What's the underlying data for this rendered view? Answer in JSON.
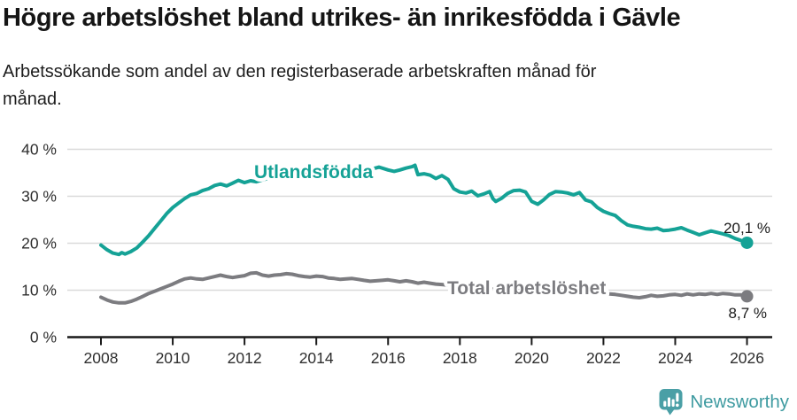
{
  "header": {
    "title": "Högre arbetslöshet bland utrikes- än inrikesfödda i Gävle",
    "subtitle_line1": "Arbetssökande som andel av den registerbaserade arbetskraften månad för",
    "subtitle_line2": "månad."
  },
  "branding": {
    "logo_text": "Newsworthy",
    "logo_icon": "bar-chart-speech-bubble-icon",
    "logo_color": "#3f9ba1"
  },
  "colors": {
    "foreign_born_line": "#15a296",
    "total_line": "#7c7c80",
    "gridline": "#dadada",
    "axis": "#1a1a1a",
    "tick_text": "#2e2e2e",
    "end_label_text": "#1a1a1a",
    "background": "#ffffff"
  },
  "chart_data": {
    "type": "line",
    "title": "Högre arbetslöshet bland utrikes- än inrikesfödda i Gävle",
    "subtitle": "Arbetssökande som andel av den registerbaserade arbetskraften månad för månad.",
    "xlabel": "",
    "ylabel": "",
    "grid": "horizontal",
    "xlim": [
      2007.05,
      2026.7
    ],
    "ylim": [
      0,
      42
    ],
    "x_ticks": [
      {
        "value": 2008,
        "label": "2008"
      },
      {
        "value": 2010,
        "label": "2010"
      },
      {
        "value": 2012,
        "label": "2012"
      },
      {
        "value": 2014,
        "label": "2014"
      },
      {
        "value": 2016,
        "label": "2016"
      },
      {
        "value": 2018,
        "label": "2018"
      },
      {
        "value": 2020,
        "label": "2020"
      },
      {
        "value": 2022,
        "label": "2022"
      },
      {
        "value": 2024,
        "label": "2024"
      },
      {
        "value": 2026,
        "label": "2026"
      }
    ],
    "y_ticks": [
      {
        "value": 0,
        "label": "0 %"
      },
      {
        "value": 10,
        "label": "10 %"
      },
      {
        "value": 20,
        "label": "20 %"
      },
      {
        "value": 30,
        "label": "30 %"
      },
      {
        "value": 40,
        "label": "40 %"
      }
    ],
    "series": [
      {
        "name": "Utlandsfödda",
        "color": "#15a296",
        "end_value": 20.1,
        "end_label": "20,1 %",
        "points": [
          [
            2008.0,
            19.6
          ],
          [
            2008.17,
            18.6
          ],
          [
            2008.33,
            17.9
          ],
          [
            2008.5,
            17.6
          ],
          [
            2008.58,
            18.0
          ],
          [
            2008.67,
            17.7
          ],
          [
            2008.83,
            18.2
          ],
          [
            2009.0,
            19.0
          ],
          [
            2009.17,
            20.3
          ],
          [
            2009.33,
            21.6
          ],
          [
            2009.5,
            23.2
          ],
          [
            2009.67,
            24.8
          ],
          [
            2009.83,
            26.3
          ],
          [
            2010.0,
            27.6
          ],
          [
            2010.17,
            28.6
          ],
          [
            2010.33,
            29.5
          ],
          [
            2010.5,
            30.3
          ],
          [
            2010.67,
            30.6
          ],
          [
            2010.83,
            31.2
          ],
          [
            2011.0,
            31.6
          ],
          [
            2011.17,
            32.3
          ],
          [
            2011.33,
            32.6
          ],
          [
            2011.5,
            32.2
          ],
          [
            2011.67,
            32.8
          ],
          [
            2011.83,
            33.4
          ],
          [
            2012.0,
            32.9
          ],
          [
            2012.17,
            33.3
          ],
          [
            2012.33,
            33.1
          ],
          [
            2012.5,
            33.5
          ],
          [
            2012.75,
            34.0
          ],
          [
            2013.0,
            34.3
          ],
          [
            2013.25,
            34.6
          ],
          [
            2013.5,
            34.4
          ],
          [
            2013.75,
            34.8
          ],
          [
            2014.0,
            35.0
          ],
          [
            2014.25,
            34.7
          ],
          [
            2014.5,
            35.0
          ],
          [
            2014.75,
            35.2
          ],
          [
            2015.0,
            35.4
          ],
          [
            2015.25,
            35.2
          ],
          [
            2015.5,
            35.7
          ],
          [
            2015.75,
            36.2
          ],
          [
            2016.0,
            35.6
          ],
          [
            2016.17,
            35.3
          ],
          [
            2016.33,
            35.6
          ],
          [
            2016.5,
            36.0
          ],
          [
            2016.67,
            36.3
          ],
          [
            2016.75,
            36.6
          ],
          [
            2016.83,
            34.6
          ],
          [
            2017.0,
            34.8
          ],
          [
            2017.17,
            34.5
          ],
          [
            2017.33,
            33.8
          ],
          [
            2017.5,
            34.4
          ],
          [
            2017.67,
            33.6
          ],
          [
            2017.83,
            31.6
          ],
          [
            2018.0,
            30.9
          ],
          [
            2018.17,
            30.7
          ],
          [
            2018.33,
            31.1
          ],
          [
            2018.5,
            30.1
          ],
          [
            2018.67,
            30.5
          ],
          [
            2018.83,
            31.0
          ],
          [
            2018.92,
            29.5
          ],
          [
            2019.0,
            28.9
          ],
          [
            2019.17,
            29.6
          ],
          [
            2019.33,
            30.6
          ],
          [
            2019.5,
            31.2
          ],
          [
            2019.67,
            31.3
          ],
          [
            2019.83,
            30.9
          ],
          [
            2020.0,
            28.9
          ],
          [
            2020.17,
            28.3
          ],
          [
            2020.33,
            29.2
          ],
          [
            2020.5,
            30.4
          ],
          [
            2020.67,
            31.0
          ],
          [
            2020.83,
            30.9
          ],
          [
            2021.0,
            30.7
          ],
          [
            2021.17,
            30.3
          ],
          [
            2021.33,
            30.8
          ],
          [
            2021.5,
            29.2
          ],
          [
            2021.67,
            28.8
          ],
          [
            2021.83,
            27.6
          ],
          [
            2022.0,
            26.8
          ],
          [
            2022.17,
            26.3
          ],
          [
            2022.33,
            25.9
          ],
          [
            2022.5,
            24.8
          ],
          [
            2022.67,
            23.9
          ],
          [
            2022.83,
            23.6
          ],
          [
            2023.0,
            23.4
          ],
          [
            2023.17,
            23.1
          ],
          [
            2023.33,
            23.0
          ],
          [
            2023.5,
            23.2
          ],
          [
            2023.67,
            22.7
          ],
          [
            2023.83,
            22.8
          ],
          [
            2024.0,
            23.0
          ],
          [
            2024.17,
            23.3
          ],
          [
            2024.33,
            22.8
          ],
          [
            2024.5,
            22.3
          ],
          [
            2024.67,
            21.8
          ],
          [
            2024.83,
            22.2
          ],
          [
            2025.0,
            22.6
          ],
          [
            2025.17,
            22.3
          ],
          [
            2025.33,
            22.0
          ],
          [
            2025.5,
            21.6
          ],
          [
            2025.67,
            21.0
          ],
          [
            2025.83,
            20.6
          ],
          [
            2026.0,
            20.1
          ]
        ]
      },
      {
        "name": "Total arbetslöshet",
        "color": "#7c7c80",
        "end_value": 8.7,
        "end_label": "8,7 %",
        "points": [
          [
            2008.0,
            8.5
          ],
          [
            2008.17,
            7.9
          ],
          [
            2008.33,
            7.5
          ],
          [
            2008.5,
            7.3
          ],
          [
            2008.67,
            7.3
          ],
          [
            2008.83,
            7.6
          ],
          [
            2009.0,
            8.1
          ],
          [
            2009.17,
            8.7
          ],
          [
            2009.33,
            9.3
          ],
          [
            2009.5,
            9.8
          ],
          [
            2009.67,
            10.3
          ],
          [
            2009.83,
            10.8
          ],
          [
            2010.0,
            11.3
          ],
          [
            2010.17,
            11.9
          ],
          [
            2010.33,
            12.4
          ],
          [
            2010.5,
            12.6
          ],
          [
            2010.67,
            12.4
          ],
          [
            2010.83,
            12.3
          ],
          [
            2011.0,
            12.6
          ],
          [
            2011.17,
            12.9
          ],
          [
            2011.33,
            13.2
          ],
          [
            2011.5,
            12.9
          ],
          [
            2011.67,
            12.7
          ],
          [
            2011.83,
            12.9
          ],
          [
            2012.0,
            13.1
          ],
          [
            2012.17,
            13.6
          ],
          [
            2012.33,
            13.7
          ],
          [
            2012.5,
            13.2
          ],
          [
            2012.67,
            13.0
          ],
          [
            2012.83,
            13.2
          ],
          [
            2013.0,
            13.3
          ],
          [
            2013.17,
            13.5
          ],
          [
            2013.33,
            13.4
          ],
          [
            2013.5,
            13.1
          ],
          [
            2013.67,
            12.9
          ],
          [
            2013.83,
            12.8
          ],
          [
            2014.0,
            13.0
          ],
          [
            2014.17,
            12.9
          ],
          [
            2014.33,
            12.6
          ],
          [
            2014.5,
            12.5
          ],
          [
            2014.67,
            12.3
          ],
          [
            2014.83,
            12.4
          ],
          [
            2015.0,
            12.5
          ],
          [
            2015.17,
            12.3
          ],
          [
            2015.33,
            12.1
          ],
          [
            2015.5,
            11.9
          ],
          [
            2015.67,
            12.0
          ],
          [
            2015.83,
            12.1
          ],
          [
            2016.0,
            12.2
          ],
          [
            2016.17,
            12.0
          ],
          [
            2016.33,
            11.8
          ],
          [
            2016.5,
            12.0
          ],
          [
            2016.67,
            11.8
          ],
          [
            2016.83,
            11.5
          ],
          [
            2017.0,
            11.7
          ],
          [
            2017.17,
            11.5
          ],
          [
            2017.33,
            11.3
          ],
          [
            2017.5,
            11.2
          ],
          [
            2017.67,
            11.1
          ],
          [
            2017.83,
            10.9
          ],
          [
            2018.0,
            10.8
          ],
          [
            2018.25,
            10.6
          ],
          [
            2018.5,
            10.5
          ],
          [
            2018.75,
            10.3
          ],
          [
            2019.0,
            10.2
          ],
          [
            2019.25,
            10.1
          ],
          [
            2019.5,
            10.0
          ],
          [
            2019.75,
            10.1
          ],
          [
            2020.0,
            10.4
          ],
          [
            2020.25,
            10.7
          ],
          [
            2020.5,
            10.8
          ],
          [
            2020.75,
            10.6
          ],
          [
            2021.0,
            10.4
          ],
          [
            2021.25,
            10.1
          ],
          [
            2021.5,
            9.8
          ],
          [
            2021.75,
            9.5
          ],
          [
            2022.0,
            9.3
          ],
          [
            2022.17,
            9.2
          ],
          [
            2022.33,
            9.1
          ],
          [
            2022.5,
            8.9
          ],
          [
            2022.67,
            8.7
          ],
          [
            2022.83,
            8.5
          ],
          [
            2023.0,
            8.4
          ],
          [
            2023.17,
            8.6
          ],
          [
            2023.33,
            8.9
          ],
          [
            2023.5,
            8.7
          ],
          [
            2023.67,
            8.8
          ],
          [
            2023.83,
            9.0
          ],
          [
            2024.0,
            9.1
          ],
          [
            2024.17,
            8.9
          ],
          [
            2024.33,
            9.2
          ],
          [
            2024.5,
            9.0
          ],
          [
            2024.67,
            9.2
          ],
          [
            2024.83,
            9.1
          ],
          [
            2025.0,
            9.3
          ],
          [
            2025.17,
            9.1
          ],
          [
            2025.33,
            9.3
          ],
          [
            2025.5,
            9.2
          ],
          [
            2025.67,
            9.0
          ],
          [
            2025.83,
            9.0
          ],
          [
            2026.0,
            8.7
          ]
        ]
      }
    ],
    "legend_position": "inline-labels"
  }
}
